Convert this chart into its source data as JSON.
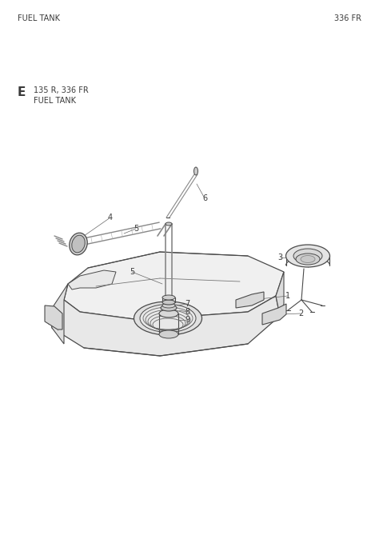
{
  "title_left": "FUEL TANK",
  "title_right": "336 FR",
  "section_label": "E",
  "section_text_line1": "135 R, 336 FR",
  "section_text_line2": "FUEL TANK",
  "background_color": "#ffffff",
  "text_color": "#3a3a3a",
  "line_color": "#4a4a4a",
  "fig_width": 4.74,
  "fig_height": 6.69,
  "dpi": 100
}
